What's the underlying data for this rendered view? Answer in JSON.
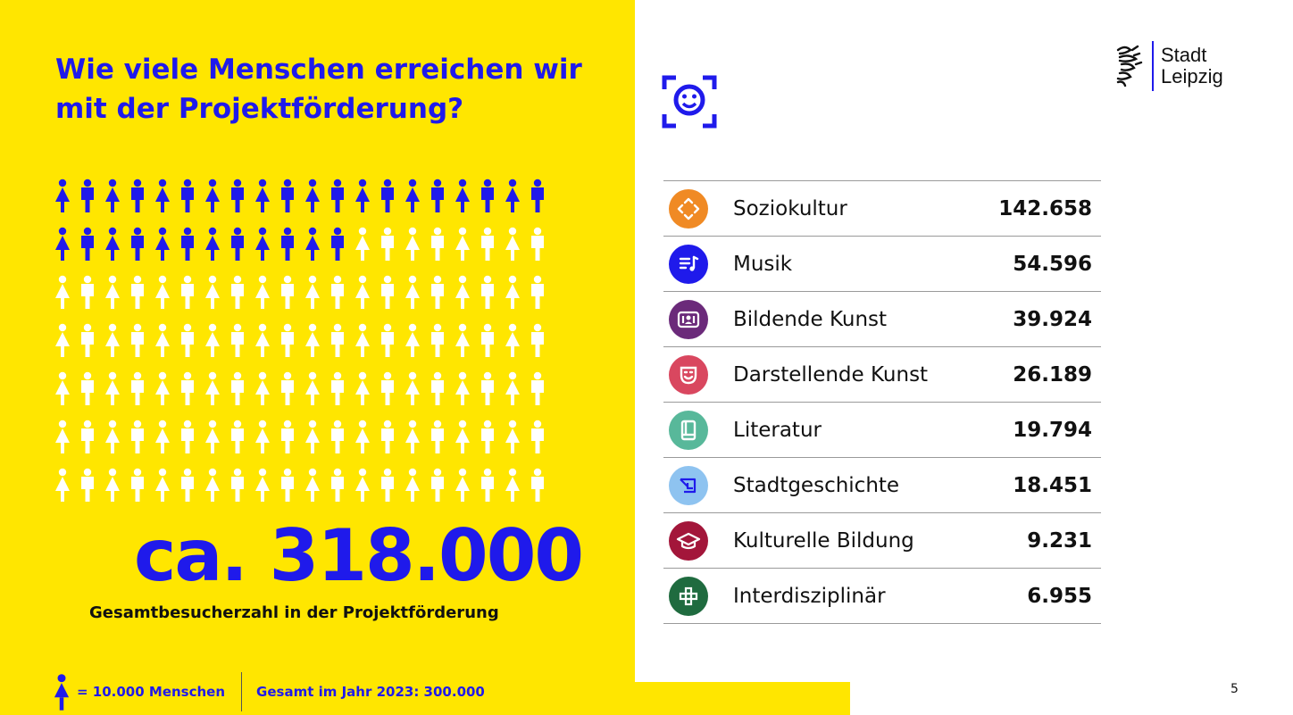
{
  "title": "Wie viele Menschen erreichen wir mit der Projektförderung?",
  "people_chart": {
    "total_icons": 140,
    "filled_icons": 32,
    "filled_color": "#1f1aeb",
    "empty_color": "#ffffff"
  },
  "total": {
    "value": "ca. 318.000",
    "caption": "Gesamtbesucherzahl in der Projektförderung"
  },
  "legend": {
    "unit": "= 10.000 Menschen",
    "year_total": "Gesamt im Jahr 2023: 300.000"
  },
  "logo": {
    "line1": "Stadt",
    "line2": "Leipzig"
  },
  "categories": [
    {
      "label": "Soziokultur",
      "value": "142.658",
      "icon": "arrows-icon",
      "color": "#f08a24"
    },
    {
      "label": "Musik",
      "value": "54.596",
      "icon": "music-icon",
      "color": "#1f1aeb"
    },
    {
      "label": "Bildende Kunst",
      "value": "39.924",
      "icon": "gallery-icon",
      "color": "#6b2a7a"
    },
    {
      "label": "Darstellende Kunst",
      "value": "26.189",
      "icon": "mask-icon",
      "color": "#d9475f"
    },
    {
      "label": "Literatur",
      "value": "19.794",
      "icon": "book-icon",
      "color": "#58b89a"
    },
    {
      "label": "Stadtgeschichte",
      "value": "18.451",
      "icon": "history-icon",
      "color": "#8ec3f0"
    },
    {
      "label": "Kulturelle Bildung",
      "value": "9.231",
      "icon": "graduation-cap-icon",
      "color": "#a3163a"
    },
    {
      "label": "Interdisziplinär",
      "value": "6.955",
      "icon": "grid-icon",
      "color": "#1f6b3f"
    }
  ],
  "page_number": "5"
}
